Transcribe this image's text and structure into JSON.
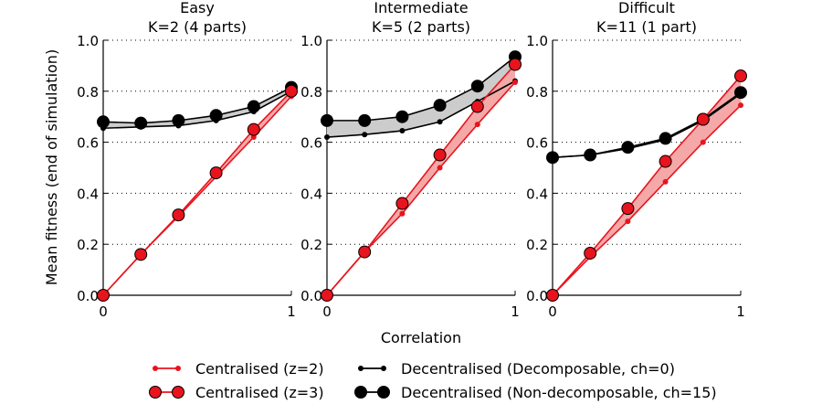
{
  "figure": {
    "ylabel": "Mean fitness (end of simulation)",
    "xlabel": "Correlation"
  },
  "colors": {
    "red": "#e8141d",
    "red_fill": "#f4a8a8",
    "black": "#000000",
    "gray_fill": "#cccccc",
    "grid": "#000000"
  },
  "chart_data": [
    {
      "type": "line",
      "title_line1": "Easy",
      "title_line2": "K=2 (4 parts)",
      "x": [
        0,
        0.2,
        0.4,
        0.6,
        0.8,
        1.0
      ],
      "xlim": [
        0,
        1
      ],
      "ylim": [
        0,
        1
      ],
      "xticks": [
        "0",
        "1"
      ],
      "yticks": [
        "0.0",
        "0.2",
        "0.4",
        "0.6",
        "0.8",
        "1.0"
      ],
      "series": [
        {
          "name": "Centralised (z=2)",
          "values": [
            0.0,
            0.16,
            0.31,
            0.465,
            0.62,
            0.78
          ]
        },
        {
          "name": "Centralised (z=3)",
          "values": [
            0.0,
            0.16,
            0.315,
            0.48,
            0.65,
            0.8
          ]
        },
        {
          "name": "Decentralised (Decomposable, ch=0)",
          "values": [
            0.655,
            0.66,
            0.665,
            0.685,
            0.72,
            0.8
          ]
        },
        {
          "name": "Decentralised (Non-decomposable, ch=15)",
          "values": [
            0.68,
            0.675,
            0.685,
            0.705,
            0.74,
            0.815
          ]
        }
      ]
    },
    {
      "type": "line",
      "title_line1": "Intermediate",
      "title_line2": "K=5 (2 parts)",
      "x": [
        0,
        0.2,
        0.4,
        0.6,
        0.8,
        1.0
      ],
      "xlim": [
        0,
        1
      ],
      "ylim": [
        0,
        1
      ],
      "xticks": [
        "0",
        "1"
      ],
      "yticks": [
        "0.0",
        "0.2",
        "0.4",
        "0.6",
        "0.8",
        "1.0"
      ],
      "series": [
        {
          "name": "Centralised (z=2)",
          "values": [
            0.0,
            0.17,
            0.32,
            0.5,
            0.67,
            0.835
          ]
        },
        {
          "name": "Centralised (z=3)",
          "values": [
            0.0,
            0.17,
            0.36,
            0.55,
            0.74,
            0.905
          ]
        },
        {
          "name": "Decentralised (Decomposable, ch=0)",
          "values": [
            0.62,
            0.63,
            0.645,
            0.68,
            0.76,
            0.84
          ]
        },
        {
          "name": "Decentralised (Non-decomposable, ch=15)",
          "values": [
            0.685,
            0.685,
            0.7,
            0.745,
            0.82,
            0.935
          ]
        }
      ]
    },
    {
      "type": "line",
      "title_line1": "Difficult",
      "title_line2": "K=11 (1 part)",
      "x": [
        0,
        0.2,
        0.4,
        0.6,
        0.8,
        1.0
      ],
      "xlim": [
        0,
        1
      ],
      "ylim": [
        0,
        1
      ],
      "xticks": [
        "0",
        "1"
      ],
      "yticks": [
        "0.0",
        "0.2",
        "0.4",
        "0.6",
        "0.8",
        "1.0"
      ],
      "series": [
        {
          "name": "Centralised (z=2)",
          "values": [
            0.0,
            0.15,
            0.29,
            0.445,
            0.6,
            0.745
          ]
        },
        {
          "name": "Centralised (z=3)",
          "values": [
            0.0,
            0.165,
            0.34,
            0.525,
            0.69,
            0.86
          ]
        },
        {
          "name": "Decentralised (Decomposable, ch=0)",
          "values": [
            0.54,
            0.55,
            0.575,
            0.61,
            0.685,
            0.79
          ]
        },
        {
          "name": "Decentralised (Non-decomposable, ch=15)",
          "values": [
            0.54,
            0.55,
            0.58,
            0.615,
            0.69,
            0.795
          ]
        }
      ]
    }
  ],
  "legend": {
    "items": [
      {
        "label": "Centralised (z=2)",
        "color": "#e8141d",
        "marker": "small"
      },
      {
        "label": "Centralised (z=3)",
        "color": "#e8141d",
        "marker": "large"
      },
      {
        "label": "Decentralised (Decomposable, ch=0)",
        "color": "#000000",
        "marker": "small"
      },
      {
        "label": "Decentralised (Non-decomposable, ch=15)",
        "color": "#000000",
        "marker": "large"
      }
    ]
  }
}
